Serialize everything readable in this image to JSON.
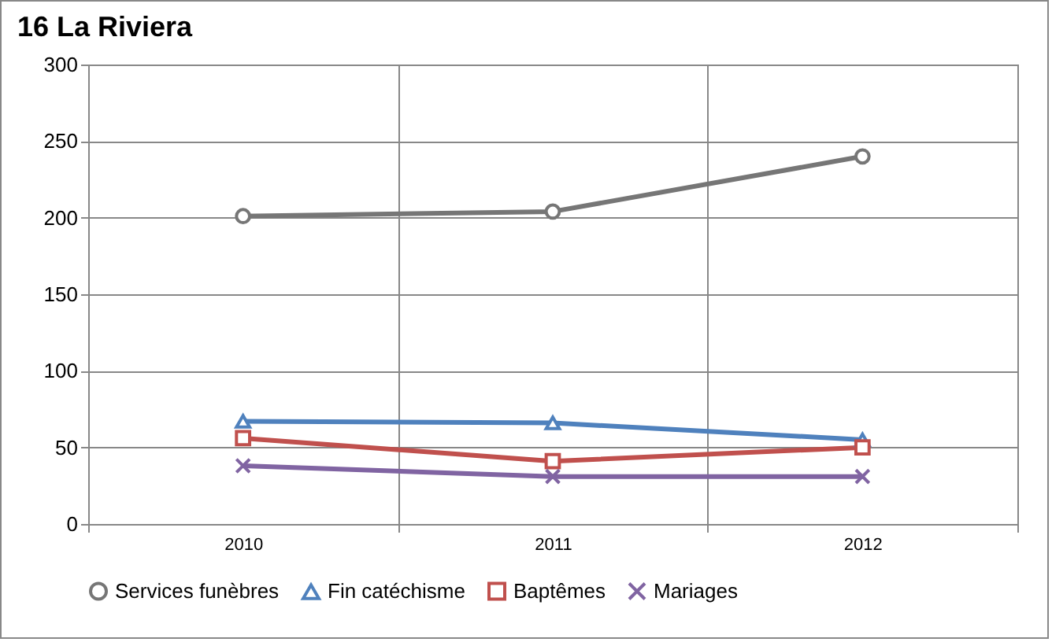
{
  "chart_data": {
    "type": "line",
    "title": "16 La Riviera",
    "categories": [
      "2010",
      "2011",
      "2012"
    ],
    "series": [
      {
        "name": "Services funèbres",
        "color": "#767676",
        "marker": "circle",
        "values": [
          201,
          204,
          240
        ]
      },
      {
        "name": "Fin catéchisme",
        "color": "#4f81bd",
        "marker": "triangle",
        "values": [
          67,
          66,
          55
        ]
      },
      {
        "name": "Baptêmes",
        "color": "#c0504d",
        "marker": "square",
        "values": [
          56,
          41,
          50
        ]
      },
      {
        "name": "Mariages",
        "color": "#8064a2",
        "marker": "cross",
        "values": [
          38,
          31,
          31
        ]
      }
    ],
    "ylim": [
      0,
      300
    ],
    "yticks": [
      0,
      50,
      100,
      150,
      200,
      250,
      300
    ],
    "grid": true,
    "legend": "bottom",
    "line_style": "solid"
  }
}
